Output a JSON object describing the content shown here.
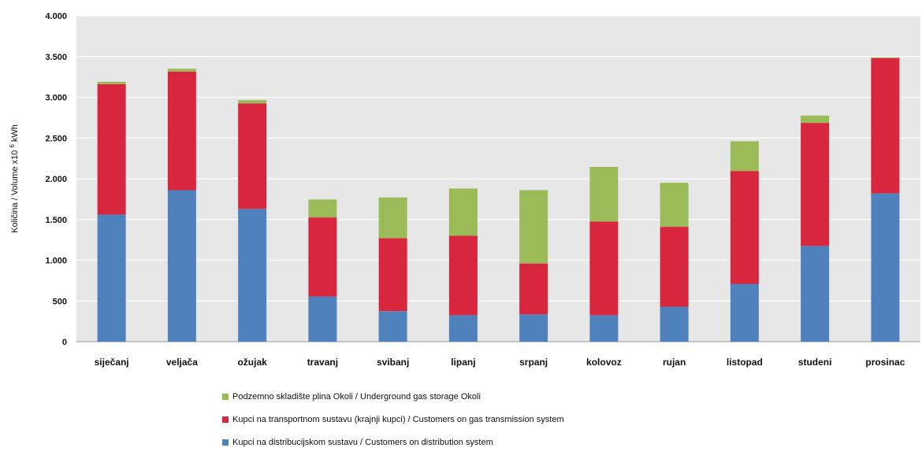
{
  "chart_data": {
    "type": "bar",
    "stacked": true,
    "title": "",
    "xlabel": "",
    "ylabel": "Količina / Volume x10",
    "ylabel_superscript": "6",
    "ylabel_unit": "kWh",
    "ylim": [
      0,
      4000
    ],
    "yticks": [
      0,
      500,
      1000,
      1500,
      2000,
      2500,
      3000,
      3500,
      4000
    ],
    "ytick_labels": [
      "0",
      "500",
      "1.000",
      "1.500",
      "2.000",
      "2.500",
      "3.000",
      "3.500",
      "4.000"
    ],
    "grid": true,
    "legend_position": "bottom",
    "categories": [
      "siječanj",
      "veljača",
      "ožujak",
      "travanj",
      "svibanj",
      "lipanj",
      "srpanj",
      "kolovoz",
      "rujan",
      "listopad",
      "studeni",
      "prosinac"
    ],
    "series": [
      {
        "name": "Kupci na distribucijskom sustavu / Customers on distribution system",
        "color": "#4F81BD",
        "values": [
          1560,
          1860,
          1630,
          555,
          375,
          325,
          335,
          325,
          430,
          710,
          1175,
          1820
        ]
      },
      {
        "name": "Kupci na transportnom sustavu (krajnji kupci) / Customers on gas transmission system",
        "color": "#D7263D",
        "values": [
          1600,
          1455,
          1295,
          970,
          895,
          975,
          625,
          1150,
          980,
          1385,
          1510,
          1660
        ]
      },
      {
        "name": "Podzemno skladište plina Okoli / Underground gas storage Okoli",
        "color": "#9BBB59",
        "values": [
          30,
          35,
          40,
          220,
          500,
          580,
          900,
          670,
          540,
          365,
          90,
          10
        ]
      }
    ],
    "legend_order": [
      2,
      1,
      0
    ]
  }
}
